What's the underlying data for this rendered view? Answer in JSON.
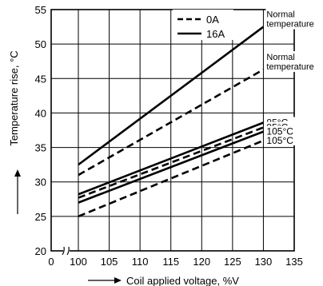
{
  "chart_data": {
    "type": "line",
    "title": "",
    "xlabel": "Coil applied voltage, %V",
    "ylabel": "Temperature rise, °C",
    "xlim": [
      0,
      135
    ],
    "ylim": [
      20,
      55
    ],
    "x_axis_break": true,
    "x_ticks": [
      0,
      100,
      105,
      110,
      115,
      120,
      125,
      130,
      135
    ],
    "y_ticks": [
      20,
      25,
      30,
      35,
      40,
      45,
      50,
      55
    ],
    "x_tick_labels": [
      "0",
      "100",
      "105",
      "110",
      "115",
      "120",
      "125",
      "130",
      "135"
    ],
    "y_tick_labels": [
      "20",
      "25",
      "30",
      "35",
      "40",
      "45",
      "50",
      "55"
    ],
    "grid": true,
    "legend": {
      "placement": "top-right",
      "entries": [
        {
          "label": "0A",
          "style": "dashed"
        },
        {
          "label": "16A",
          "style": "solid"
        }
      ]
    },
    "series": [
      {
        "name": "Normal temperature",
        "current": "16A",
        "style": "solid",
        "x": [
          100,
          130
        ],
        "y": [
          32.5,
          52.5
        ]
      },
      {
        "name": "Normal temperature",
        "current": "0A",
        "style": "dashed",
        "x": [
          100,
          130
        ],
        "y": [
          31,
          46.3
        ]
      },
      {
        "name": "85°C",
        "current": "16A",
        "style": "solid",
        "x": [
          100,
          130
        ],
        "y": [
          28.2,
          38.6
        ]
      },
      {
        "name": "85°C",
        "current": "0A",
        "style": "dashed",
        "x": [
          100,
          130
        ],
        "y": [
          27.7,
          37.9
        ]
      },
      {
        "name": "105°C",
        "current": "16A",
        "style": "solid",
        "x": [
          100,
          130
        ],
        "y": [
          27,
          37.3
        ]
      },
      {
        "name": "105°C",
        "current": "0A",
        "style": "dashed",
        "x": [
          100,
          130
        ],
        "y": [
          25,
          36
        ]
      }
    ],
    "series_labels": [
      {
        "text": [
          "Normal",
          "temperature"
        ],
        "series_index": 0
      },
      {
        "text": [
          "Normal",
          "temperature"
        ],
        "series_index": 1
      },
      {
        "text": [
          "85°C"
        ],
        "series_index": 2
      },
      {
        "text": [
          "85°C"
        ],
        "series_index": 3
      },
      {
        "text": [
          "105°C"
        ],
        "series_index": 4
      },
      {
        "text": [
          "105°C"
        ],
        "series_index": 5
      }
    ]
  }
}
